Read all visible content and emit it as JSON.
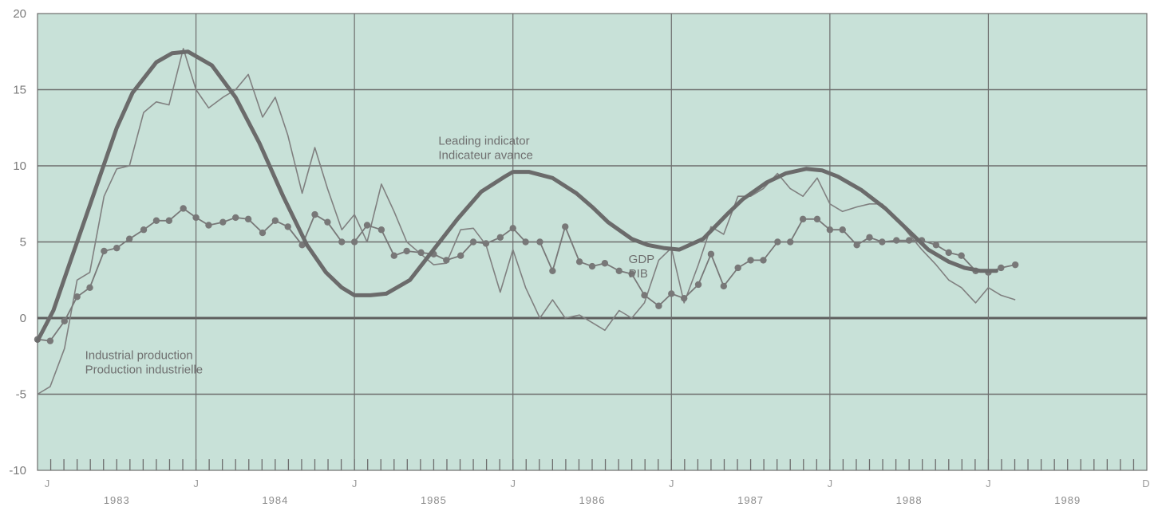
{
  "chart_data": {
    "type": "line",
    "ylim": [
      -10,
      20
    ],
    "yticks": [
      -10,
      -5,
      0,
      5,
      10,
      15,
      20
    ],
    "y_tick_labels": [
      "-10",
      "-5",
      "0",
      "5",
      "10",
      "15",
      "20"
    ],
    "xlim": [
      1983.0,
      1990.0
    ],
    "x_tick_letters": [
      {
        "x": 1983.0,
        "label": "J"
      },
      {
        "x": 1984.0,
        "label": "J"
      },
      {
        "x": 1985.0,
        "label": "J"
      },
      {
        "x": 1986.0,
        "label": "J"
      },
      {
        "x": 1987.0,
        "label": "J"
      },
      {
        "x": 1988.0,
        "label": "J"
      },
      {
        "x": 1989.0,
        "label": "J"
      },
      {
        "x": 1990.0,
        "label": "D"
      }
    ],
    "year_labels": [
      "1983",
      "1984",
      "1985",
      "1986",
      "1987",
      "1988",
      "1989"
    ],
    "grid": true,
    "colors": {
      "plot_bg": "#c8e1d8",
      "grid": "#6d6d6d",
      "leading": "#6b6b6b",
      "industrial": "#808080",
      "gdp": "#787878",
      "zero_line": "#5e5e5e"
    },
    "annotations": [
      {
        "lines": [
          "Leading indicator",
          "Indicateur avance"
        ],
        "x": 1985.53,
        "y": 11.4,
        "points_to": "Leading indicator"
      },
      {
        "lines": [
          "GDP",
          "PIB"
        ],
        "x": 1986.73,
        "y": 3.6,
        "points_to": "GDP"
      },
      {
        "lines": [
          "Industrial production",
          "Production industrielle"
        ],
        "x": 1983.3,
        "y": -2.7,
        "points_to": "Industrial production"
      }
    ],
    "series": [
      {
        "name": "Leading indicator",
        "style": "thick",
        "x": [
          1983.0,
          1983.1,
          1983.2,
          1983.3,
          1983.4,
          1983.5,
          1983.6,
          1983.75,
          1983.85,
          1983.95,
          1984.1,
          1984.25,
          1984.4,
          1984.55,
          1984.7,
          1984.82,
          1984.92,
          1985.0,
          1985.1,
          1985.2,
          1985.35,
          1985.5,
          1985.65,
          1985.8,
          1985.95,
          1986.0,
          1986.1,
          1986.25,
          1986.4,
          1986.5,
          1986.6,
          1986.75,
          1986.85,
          1986.95,
          1987.05,
          1987.2,
          1987.35,
          1987.45,
          1987.6,
          1987.72,
          1987.85,
          1987.95,
          1988.05,
          1988.2,
          1988.35,
          1988.5,
          1988.62,
          1988.75,
          1988.85,
          1988.95,
          1989.05
        ],
        "values": [
          -1.5,
          0.5,
          3.5,
          6.5,
          9.5,
          12.5,
          14.8,
          16.8,
          17.4,
          17.5,
          16.6,
          14.5,
          11.5,
          8.0,
          4.8,
          3.0,
          2.0,
          1.5,
          1.5,
          1.6,
          2.5,
          4.5,
          6.5,
          8.3,
          9.3,
          9.6,
          9.6,
          9.2,
          8.2,
          7.3,
          6.3,
          5.2,
          4.8,
          4.6,
          4.5,
          5.2,
          6.8,
          7.8,
          8.9,
          9.5,
          9.8,
          9.7,
          9.3,
          8.4,
          7.2,
          5.7,
          4.5,
          3.7,
          3.3,
          3.1,
          3.1
        ]
      },
      {
        "name": "Industrial production",
        "style": "thin",
        "x": [
          1983.0,
          1983.08,
          1983.17,
          1983.25,
          1983.33,
          1983.42,
          1983.5,
          1983.58,
          1983.67,
          1983.75,
          1983.83,
          1983.92,
          1984.0,
          1984.08,
          1984.17,
          1984.25,
          1984.33,
          1984.42,
          1984.5,
          1984.58,
          1984.67,
          1984.75,
          1984.83,
          1984.92,
          1985.0,
          1985.08,
          1985.17,
          1985.25,
          1985.33,
          1985.42,
          1985.5,
          1985.58,
          1985.67,
          1985.75,
          1985.83,
          1985.92,
          1986.0,
          1986.08,
          1986.17,
          1986.25,
          1986.33,
          1986.42,
          1986.5,
          1986.58,
          1986.67,
          1986.75,
          1986.83,
          1986.92,
          1987.0,
          1987.08,
          1987.17,
          1987.25,
          1987.33,
          1987.42,
          1987.5,
          1987.58,
          1987.67,
          1987.75,
          1987.83,
          1987.92,
          1988.0,
          1988.08,
          1988.17,
          1988.25,
          1988.33,
          1988.42,
          1988.5,
          1988.58,
          1988.67,
          1988.75,
          1988.83,
          1988.92,
          1989.0,
          1989.08,
          1989.17
        ],
        "values": [
          -5.0,
          -4.5,
          -2.0,
          2.5,
          3.0,
          8.0,
          9.8,
          10.0,
          13.5,
          14.2,
          14.0,
          17.7,
          15.0,
          13.8,
          14.5,
          15.0,
          16.0,
          13.2,
          14.5,
          12.0,
          8.2,
          11.2,
          8.5,
          5.8,
          6.8,
          5.0,
          8.8,
          7.0,
          5.0,
          4.2,
          3.5,
          3.6,
          5.8,
          5.9,
          4.8,
          1.7,
          4.5,
          2.0,
          0.0,
          1.2,
          0.0,
          0.2,
          -0.3,
          -0.8,
          0.5,
          0.0,
          1.0,
          3.8,
          4.6,
          1.0,
          3.5,
          6.0,
          5.5,
          8.0,
          8.0,
          8.5,
          9.5,
          8.5,
          8.0,
          9.2,
          7.5,
          7.0,
          7.3,
          7.5,
          7.5,
          6.5,
          5.5,
          4.5,
          3.5,
          2.5,
          2.0,
          1.0,
          2.0,
          1.5,
          1.2
        ]
      },
      {
        "name": "GDP",
        "style": "dotted-markers",
        "x": [
          1983.0,
          1983.08,
          1983.17,
          1983.25,
          1983.33,
          1983.42,
          1983.5,
          1983.58,
          1983.67,
          1983.75,
          1983.83,
          1983.92,
          1984.0,
          1984.08,
          1984.17,
          1984.25,
          1984.33,
          1984.42,
          1984.5,
          1984.58,
          1984.67,
          1984.75,
          1984.83,
          1984.92,
          1985.0,
          1985.08,
          1985.17,
          1985.25,
          1985.33,
          1985.42,
          1985.5,
          1985.58,
          1985.67,
          1985.75,
          1985.83,
          1985.92,
          1986.0,
          1986.08,
          1986.17,
          1986.25,
          1986.33,
          1986.42,
          1986.5,
          1986.58,
          1986.67,
          1986.75,
          1986.83,
          1986.92,
          1987.0,
          1987.08,
          1987.17,
          1987.25,
          1987.33,
          1987.42,
          1987.5,
          1987.58,
          1987.67,
          1987.75,
          1987.83,
          1987.92,
          1988.0,
          1988.08,
          1988.17,
          1988.25,
          1988.33,
          1988.42,
          1988.5,
          1988.58,
          1988.67,
          1988.75,
          1988.83,
          1988.92,
          1989.0,
          1989.08,
          1989.17
        ],
        "values": [
          -1.4,
          -1.5,
          -0.2,
          1.4,
          2.0,
          4.4,
          4.6,
          5.2,
          5.8,
          6.4,
          6.4,
          7.2,
          6.6,
          6.1,
          6.3,
          6.6,
          6.5,
          5.6,
          6.4,
          6.0,
          4.8,
          6.8,
          6.3,
          5.0,
          5.0,
          6.1,
          5.8,
          4.1,
          4.4,
          4.3,
          4.2,
          3.8,
          4.1,
          5.0,
          4.9,
          5.3,
          5.9,
          5.0,
          5.0,
          3.1,
          6.0,
          3.7,
          3.4,
          3.6,
          3.1,
          2.9,
          1.5,
          0.8,
          1.6,
          1.3,
          2.2,
          4.2,
          2.1,
          3.3,
          3.8,
          3.8,
          5.0,
          5.0,
          6.5,
          6.5,
          5.8,
          5.8,
          4.8,
          5.3,
          5.0,
          5.1,
          5.1,
          5.1,
          4.8,
          4.3,
          4.1,
          3.1,
          3.0,
          3.3,
          3.5
        ]
      }
    ]
  }
}
